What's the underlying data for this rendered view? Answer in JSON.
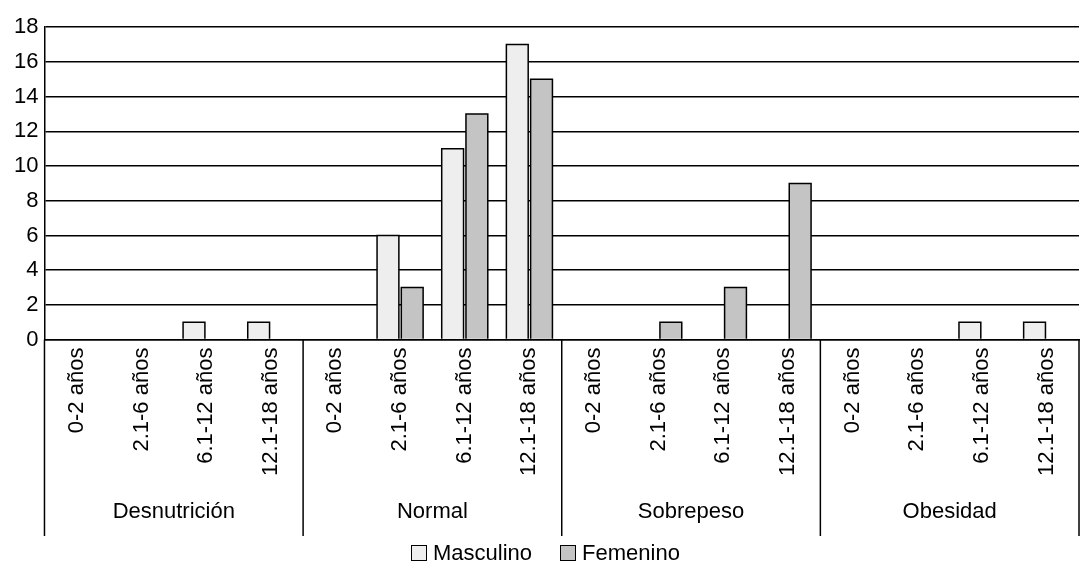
{
  "chart_data": {
    "type": "bar",
    "categories": [
      "0-2 años",
      "2.1-6 años",
      "6.1-12 años",
      "12.1-18 años",
      "0-2 años",
      "2.1-6 años",
      "6.1-12 años",
      "12.1-18 años",
      "0-2 años",
      "2.1-6 años",
      "6.1-12 años",
      "12.1-18 años",
      "0-2 años",
      "2.1-6 años",
      "6.1-12 años",
      "12.1-18 años"
    ],
    "series": [
      {
        "name": "Masculino",
        "color": "#eeeeee",
        "values": [
          0,
          0,
          1,
          1,
          0,
          6,
          11,
          17,
          0,
          0,
          0,
          0,
          0,
          0,
          1,
          1
        ]
      },
      {
        "name": "Femenino",
        "color": "#c4c4c4",
        "values": [
          0,
          0,
          0,
          0,
          0,
          3,
          13,
          15,
          0,
          1,
          3,
          9,
          0,
          0,
          0,
          0
        ]
      }
    ],
    "ylim": [
      0,
      18
    ],
    "yticks": [
      0,
      2,
      4,
      6,
      8,
      10,
      12,
      14,
      16,
      18
    ],
    "grid": "y",
    "legend": "bottom",
    "annotations": [
      "Desnutrición",
      "Normal",
      "Sobrepeso",
      "Obesidad"
    ]
  }
}
